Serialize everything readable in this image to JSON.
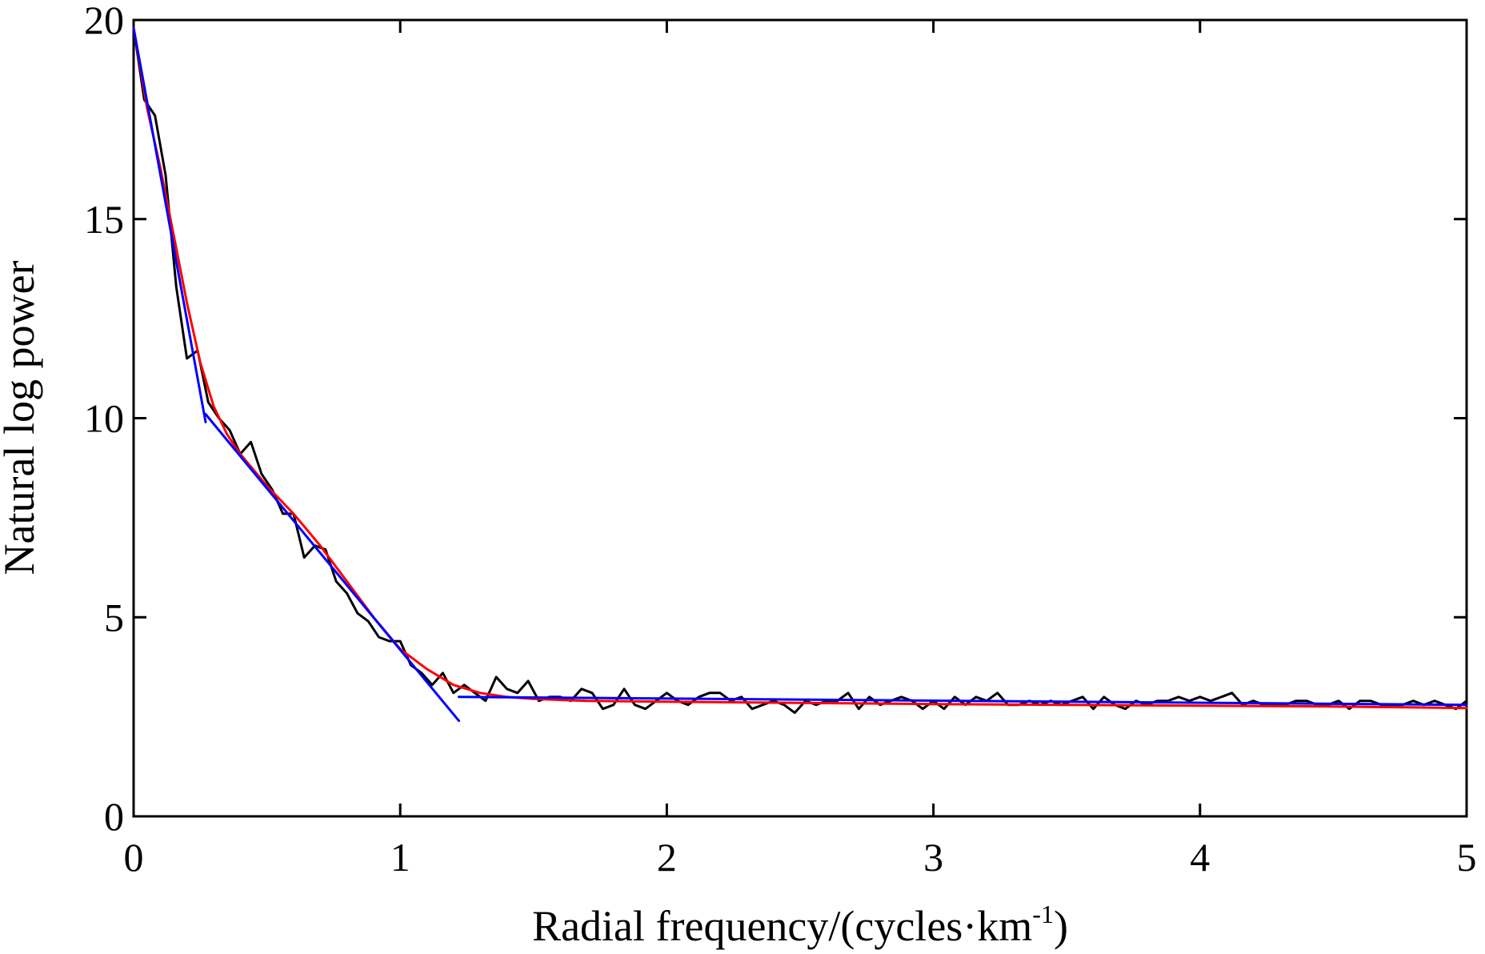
{
  "chart_data": {
    "type": "line",
    "title": "",
    "xlabel": "Radial frequency/(cycles·km",
    "xlabel_sup": "-1",
    "xlabel_tail": ")",
    "ylabel": "Natural log power",
    "xlim": [
      0,
      5
    ],
    "ylim": [
      0,
      20
    ],
    "xticks": [
      "0",
      "1",
      "2",
      "3",
      "4",
      "5"
    ],
    "yticks": [
      "0",
      "5",
      "10",
      "15",
      "20"
    ],
    "grid": false,
    "legend": "none",
    "series": [
      {
        "color": "#000000",
        "x": [
          0,
          0.04,
          0.08,
          0.12,
          0.16,
          0.2,
          0.24,
          0.28,
          0.32,
          0.36,
          0.4,
          0.44,
          0.48,
          0.52,
          0.56,
          0.6,
          0.64,
          0.68,
          0.72,
          0.76,
          0.8,
          0.84,
          0.88,
          0.92,
          0.96,
          1.0,
          1.04,
          1.08,
          1.12,
          1.16,
          1.2,
          1.24,
          1.28,
          1.32,
          1.36,
          1.4,
          1.44,
          1.48,
          1.52,
          1.56,
          1.6,
          1.64,
          1.68,
          1.72,
          1.76,
          1.8,
          1.84,
          1.88,
          1.92,
          1.96,
          2.0,
          2.04,
          2.08,
          2.12,
          2.16,
          2.2,
          2.24,
          2.28,
          2.32,
          2.36,
          2.4,
          2.44,
          2.48,
          2.52,
          2.56,
          2.6,
          2.64,
          2.68,
          2.72,
          2.76,
          2.8,
          2.84,
          2.88,
          2.92,
          2.96,
          3.0,
          3.04,
          3.08,
          3.12,
          3.16,
          3.2,
          3.24,
          3.28,
          3.32,
          3.36,
          3.4,
          3.44,
          3.48,
          3.52,
          3.56,
          3.6,
          3.64,
          3.68,
          3.72,
          3.76,
          3.8,
          3.84,
          3.88,
          3.92,
          3.96,
          4.0,
          4.04,
          4.08,
          4.12,
          4.16,
          4.2,
          4.24,
          4.28,
          4.32,
          4.36,
          4.4,
          4.44,
          4.48,
          4.52,
          4.56,
          4.6,
          4.64,
          4.68,
          4.72,
          4.76,
          4.8,
          4.84,
          4.88,
          4.92,
          4.96,
          5.0
        ],
        "y": [
          19.8,
          18.0,
          17.6,
          16.1,
          13.3,
          11.5,
          11.7,
          10.4,
          10.0,
          9.7,
          9.1,
          9.4,
          8.6,
          8.2,
          7.6,
          7.6,
          6.5,
          6.8,
          6.7,
          5.9,
          5.6,
          5.1,
          4.9,
          4.5,
          4.4,
          4.4,
          3.8,
          3.6,
          3.3,
          3.6,
          3.1,
          3.3,
          3.1,
          2.9,
          3.5,
          3.2,
          3.1,
          3.4,
          2.9,
          3.0,
          3.0,
          2.9,
          3.2,
          3.1,
          2.7,
          2.8,
          3.2,
          2.8,
          2.7,
          2.9,
          3.1,
          2.9,
          2.8,
          3.0,
          3.1,
          3.1,
          2.9,
          3.0,
          2.7,
          2.8,
          2.9,
          2.8,
          2.6,
          2.9,
          2.8,
          2.9,
          2.9,
          3.1,
          2.7,
          3.0,
          2.8,
          2.9,
          3.0,
          2.9,
          2.7,
          2.9,
          2.7,
          3.0,
          2.8,
          3.0,
          2.9,
          3.1,
          2.8,
          2.8,
          2.9,
          2.8,
          2.9,
          2.8,
          2.9,
          3.0,
          2.7,
          3.0,
          2.8,
          2.7,
          2.9,
          2.8,
          2.9,
          2.9,
          3.0,
          2.9,
          3.0,
          2.9,
          3.0,
          3.1,
          2.8,
          2.9,
          2.8,
          2.8,
          2.8,
          2.9,
          2.9,
          2.8,
          2.8,
          2.9,
          2.7,
          2.9,
          2.9,
          2.8,
          2.8,
          2.8,
          2.9,
          2.8,
          2.9,
          2.8,
          2.7,
          2.9
        ]
      },
      {
        "color": "#ff0000",
        "x": [
          0,
          0.05,
          0.1,
          0.15,
          0.2,
          0.25,
          0.3,
          0.35,
          0.4,
          0.5,
          0.6,
          0.7,
          0.8,
          0.9,
          1.0,
          1.1,
          1.2,
          1.3,
          1.4,
          1.5,
          1.7,
          2.0,
          2.5,
          3.0,
          3.5,
          4.0,
          4.5,
          5.0
        ],
        "y": [
          19.8,
          17.8,
          16.3,
          14.6,
          12.9,
          11.4,
          10.3,
          9.6,
          9.1,
          8.3,
          7.6,
          6.8,
          5.9,
          5.0,
          4.2,
          3.7,
          3.3,
          3.1,
          3.0,
          2.95,
          2.9,
          2.88,
          2.85,
          2.82,
          2.8,
          2.78,
          2.76,
          2.72
        ]
      },
      {
        "color": "#0000ff",
        "segments": [
          {
            "x": [
              0,
              0.27
            ],
            "y": [
              19.8,
              9.9
            ]
          },
          {
            "x": [
              0.27,
              1.22
            ],
            "y": [
              10.1,
              2.4
            ]
          },
          {
            "x": [
              1.22,
              5.0
            ],
            "y": [
              3.0,
              2.8
            ]
          }
        ]
      }
    ]
  }
}
